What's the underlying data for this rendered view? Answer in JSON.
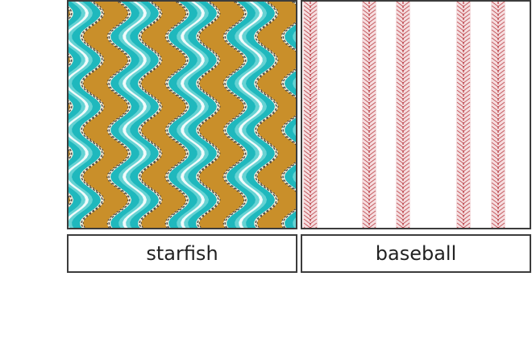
{
  "tiles": [
    {
      "label": "starfish",
      "pattern": "wavy-stripes",
      "colors": {
        "primary": "#1fb8bd",
        "secondary": "#c98f2a",
        "highlight": "#f6efdc",
        "dark": "#2a2a2a"
      }
    },
    {
      "label": "baseball",
      "pattern": "vertical-stitch-stripes",
      "colors": {
        "primary": "#b83a40",
        "secondary": "#e3a1a5",
        "background": "#ffffff"
      }
    }
  ]
}
